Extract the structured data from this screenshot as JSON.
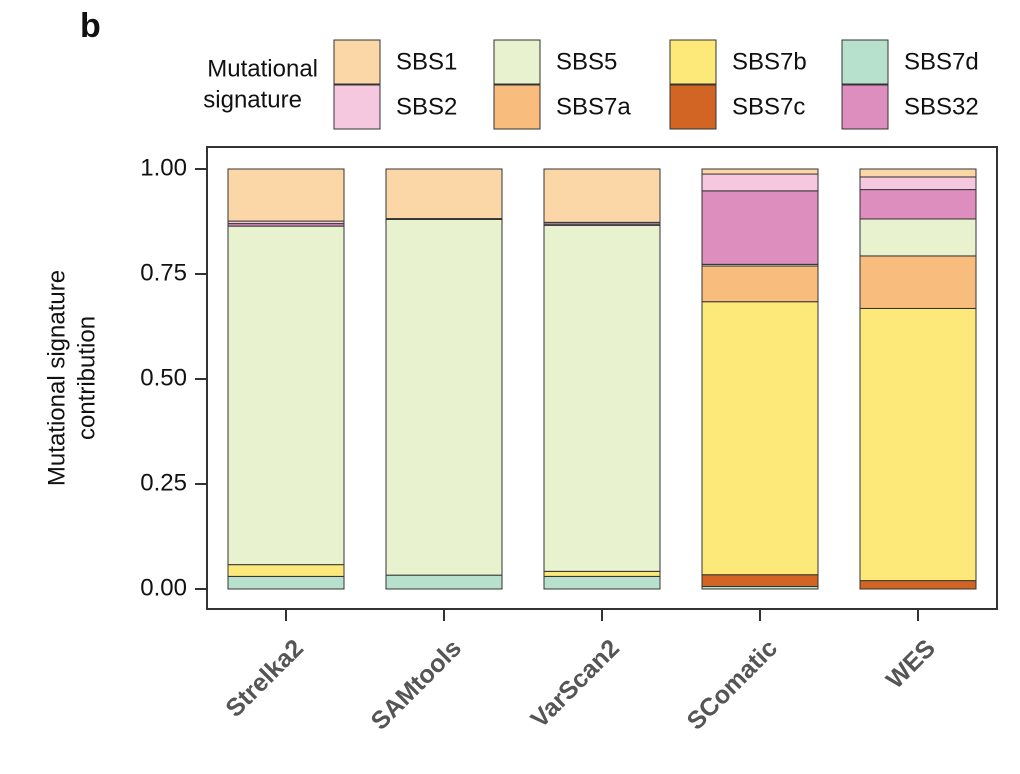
{
  "chart_data": {
    "type": "bar",
    "stacked": true,
    "panel_label": "b",
    "legend_title": [
      "Mutational",
      "signature"
    ],
    "ylabel": [
      "Mutational signature",
      "contribution"
    ],
    "categories": [
      "Strelka2",
      "SAMtools",
      "VarScan2",
      "SComatic",
      "WES"
    ],
    "series": [
      {
        "name": "SBS1",
        "color": "#fbd7a8",
        "values": [
          0.124,
          0.118,
          0.127,
          0.012,
          0.019
        ]
      },
      {
        "name": "SBS2",
        "color": "#f6c8e0",
        "values": [
          0.006,
          0.002,
          0.004,
          0.04,
          0.03
        ]
      },
      {
        "name": "SBS5",
        "color": "#e8f2cf",
        "values": [
          0.806,
          0.847,
          0.824,
          0.004,
          0.088
        ]
      },
      {
        "name": "SBS7a",
        "color": "#f8bd7c",
        "values": [
          0,
          0,
          0,
          0.085,
          0.125
        ]
      },
      {
        "name": "SBS7b",
        "color": "#fde87a",
        "values": [
          0.028,
          0,
          0.012,
          0.65,
          0.648
        ]
      },
      {
        "name": "SBS7c",
        "color": "#d26424",
        "values": [
          0,
          0,
          0,
          0.028,
          0.02
        ]
      },
      {
        "name": "SBS7d",
        "color": "#b7e0cd",
        "values": [
          0.03,
          0.033,
          0.03,
          0.006,
          0
        ]
      },
      {
        "name": "SBS32",
        "color": "#de8ebe",
        "values": [
          0.006,
          0,
          0.003,
          0.175,
          0.07
        ]
      }
    ],
    "ylim": [
      0,
      1
    ],
    "yticks": [
      {
        "value": 0,
        "label": "0.00"
      },
      {
        "value": 0.25,
        "label": "0.25"
      },
      {
        "value": 0.5,
        "label": "0.50"
      },
      {
        "value": 0.75,
        "label": "0.75"
      },
      {
        "value": 1,
        "label": "1.00"
      }
    ]
  }
}
